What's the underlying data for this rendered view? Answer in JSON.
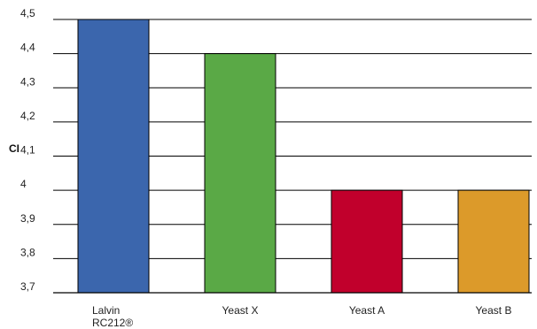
{
  "chart_data": {
    "type": "bar",
    "title": "",
    "xlabel": "",
    "ylabel": "CI",
    "ylim": [
      3.7,
      4.5
    ],
    "grid": true,
    "legend": "none",
    "categories": [
      "Lalvin RC212®",
      "Yeast X",
      "Yeast A",
      "Yeast B"
    ],
    "category_lines": [
      [
        "Lalvin",
        "RC212®"
      ],
      [
        "Yeast X"
      ],
      [
        "Yeast A"
      ],
      [
        "Yeast B"
      ]
    ],
    "values": [
      4.5,
      4.4,
      4.0,
      4.0
    ],
    "colors": [
      "#3b66ad",
      "#5aa946",
      "#c1002c",
      "#dc9a2a"
    ],
    "yticks": [
      {
        "value": 3.7,
        "label": "3,7"
      },
      {
        "value": 3.8,
        "label": "3,8"
      },
      {
        "value": 3.9,
        "label": "3,9"
      },
      {
        "value": 4.0,
        "label": "4"
      },
      {
        "value": 4.1,
        "label": "4,1"
      },
      {
        "value": 4.2,
        "label": "4,2"
      },
      {
        "value": 4.3,
        "label": "4,3"
      },
      {
        "value": 4.4,
        "label": "4,4"
      },
      {
        "value": 4.5,
        "label": "4,5"
      }
    ]
  }
}
